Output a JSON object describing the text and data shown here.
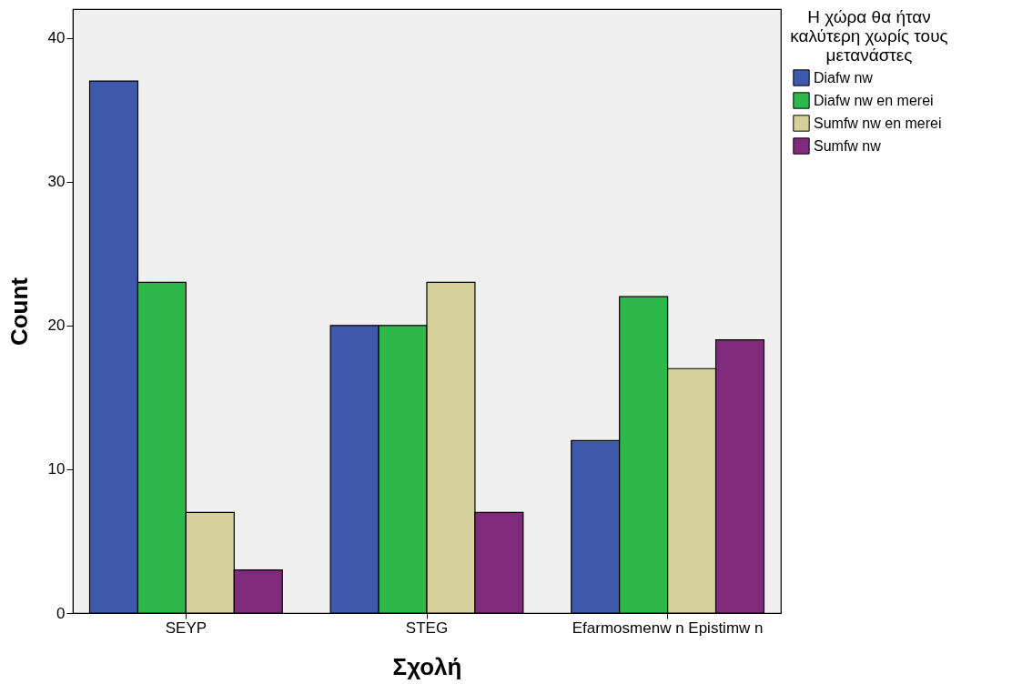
{
  "chart_data": {
    "type": "bar",
    "xlabel": "Σχολή",
    "ylabel": "Count",
    "legend_title": "Η χώρα θα ήταν καλύτερη χωρίς τους μετανάστες",
    "categories": [
      "SEYP",
      "STEG",
      "Efarmosmenw n Epistimw n"
    ],
    "series": [
      {
        "name": "Diafw nw",
        "color": "#3e59ab",
        "values": [
          37,
          20,
          12
        ]
      },
      {
        "name": "Diafw nw  en merei",
        "color": "#2eb84a",
        "values": [
          23,
          20,
          22
        ]
      },
      {
        "name": "Sumfw nw  en merei",
        "color": "#d6d19a",
        "values": [
          7,
          23,
          17
        ]
      },
      {
        "name": "Sumfw nw",
        "color": "#7f2a7b",
        "values": [
          3,
          7,
          19
        ]
      }
    ],
    "ylim": [
      0,
      42
    ],
    "yticks": [
      0,
      10,
      20,
      30,
      40
    ],
    "grid": false,
    "legend": "top right"
  }
}
